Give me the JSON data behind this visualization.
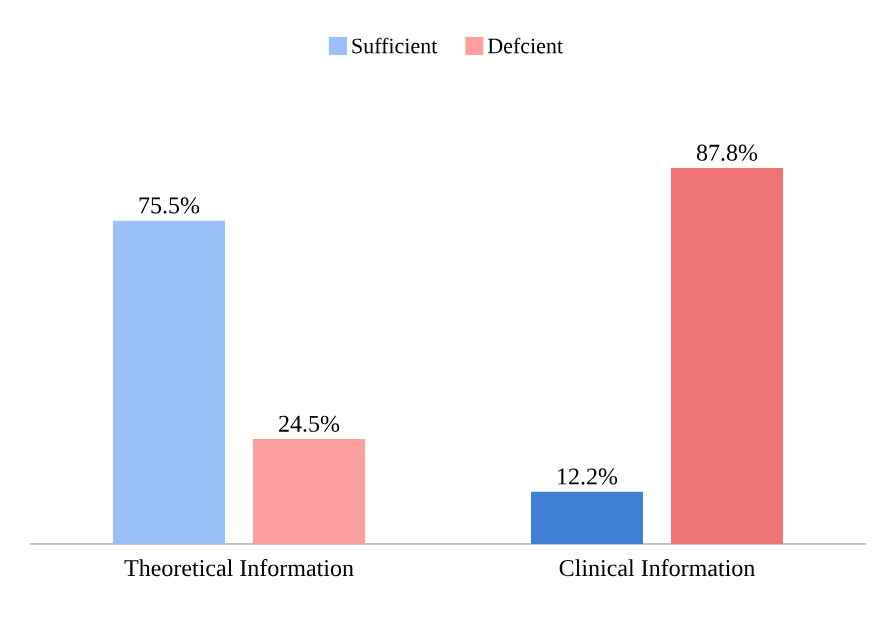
{
  "chart_data": {
    "type": "bar",
    "categories": [
      "Theoretical Information",
      "Clinical Information"
    ],
    "series": [
      {
        "name": "Sufficient",
        "color": "#99c0f7",
        "colors": [
          "#99c0f7",
          "#3f7fd2"
        ],
        "values": [
          75.5,
          12.2
        ],
        "value_labels": [
          "75.5%",
          "12.2%"
        ]
      },
      {
        "name": "Defcient",
        "color": "#ff9e9e",
        "colors": [
          "#ff9e9e",
          "#ee7474"
        ],
        "values": [
          24.5,
          87.8
        ],
        "value_labels": [
          "24.5%",
          "87.8%"
        ]
      }
    ],
    "legend": "top"
  }
}
